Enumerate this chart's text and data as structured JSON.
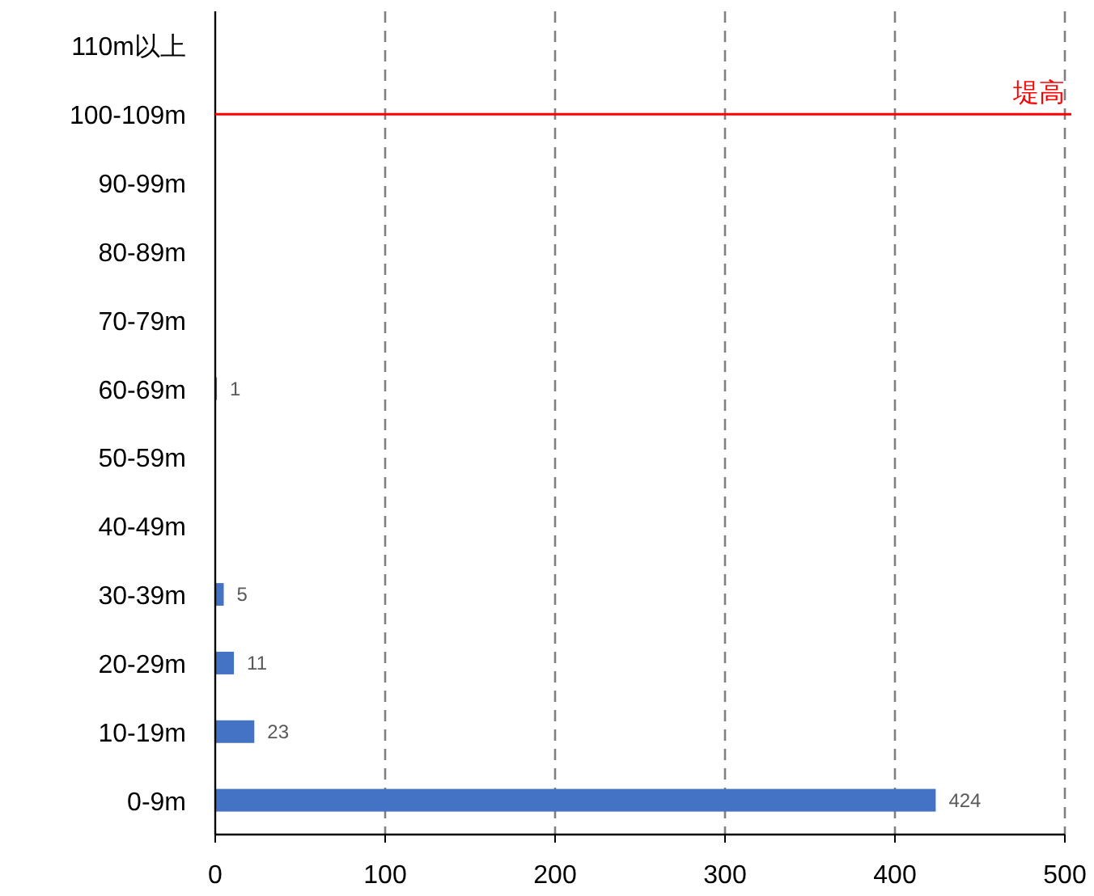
{
  "chart_data": {
    "type": "bar",
    "orientation": "horizontal",
    "categories": [
      "110m以上",
      "100-109m",
      "90-99m",
      "80-89m",
      "70-79m",
      "60-69m",
      "50-59m",
      "40-49m",
      "30-39m",
      "20-29m",
      "10-19m",
      "0-9m"
    ],
    "values": [
      0,
      0,
      0,
      0,
      0,
      1,
      0,
      0,
      5,
      11,
      23,
      424
    ],
    "value_labels": [
      null,
      null,
      null,
      null,
      null,
      "1",
      null,
      null,
      "5",
      "11",
      "23",
      "424"
    ],
    "color": "#4472c4",
    "xlim": [
      0,
      500
    ],
    "xticks": [
      0,
      100,
      200,
      300,
      400,
      500
    ],
    "grid": "x",
    "ref_lines": [
      {
        "axis": "y",
        "value": "100-109m",
        "label": "堤高",
        "color": "#ff0000"
      }
    ]
  }
}
